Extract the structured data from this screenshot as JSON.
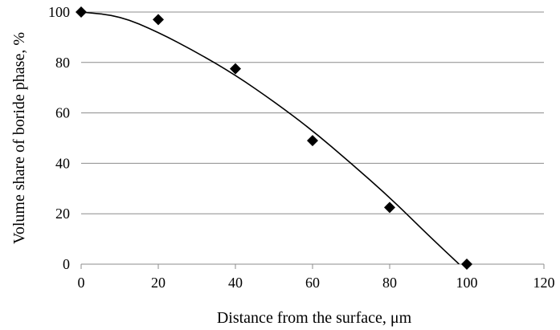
{
  "chart_data": {
    "type": "scatter",
    "title": "",
    "xlabel": "Distance from the surface, μm",
    "ylabel": "Volume share of boride phase, %",
    "xlim": [
      0,
      120
    ],
    "ylim": [
      0,
      100
    ],
    "x_ticks": [
      0,
      20,
      40,
      60,
      80,
      100,
      120
    ],
    "y_ticks": [
      0,
      20,
      40,
      60,
      80,
      100
    ],
    "grid": "horizontal",
    "legend": "none",
    "series": [
      {
        "kind": "points",
        "marker": "diamond",
        "color": "#000000",
        "x": [
          0,
          20,
          40,
          60,
          80,
          100
        ],
        "y": [
          100,
          97,
          77.5,
          49,
          22.5,
          0
        ]
      },
      {
        "kind": "trendline",
        "color": "#000000",
        "x": [
          0,
          10,
          20,
          30,
          40,
          50,
          60,
          70,
          80,
          90,
          98
        ],
        "y": [
          102,
          98.5,
          92,
          84,
          75,
          64.5,
          53,
          40,
          26.5,
          11.5,
          0
        ]
      }
    ]
  }
}
